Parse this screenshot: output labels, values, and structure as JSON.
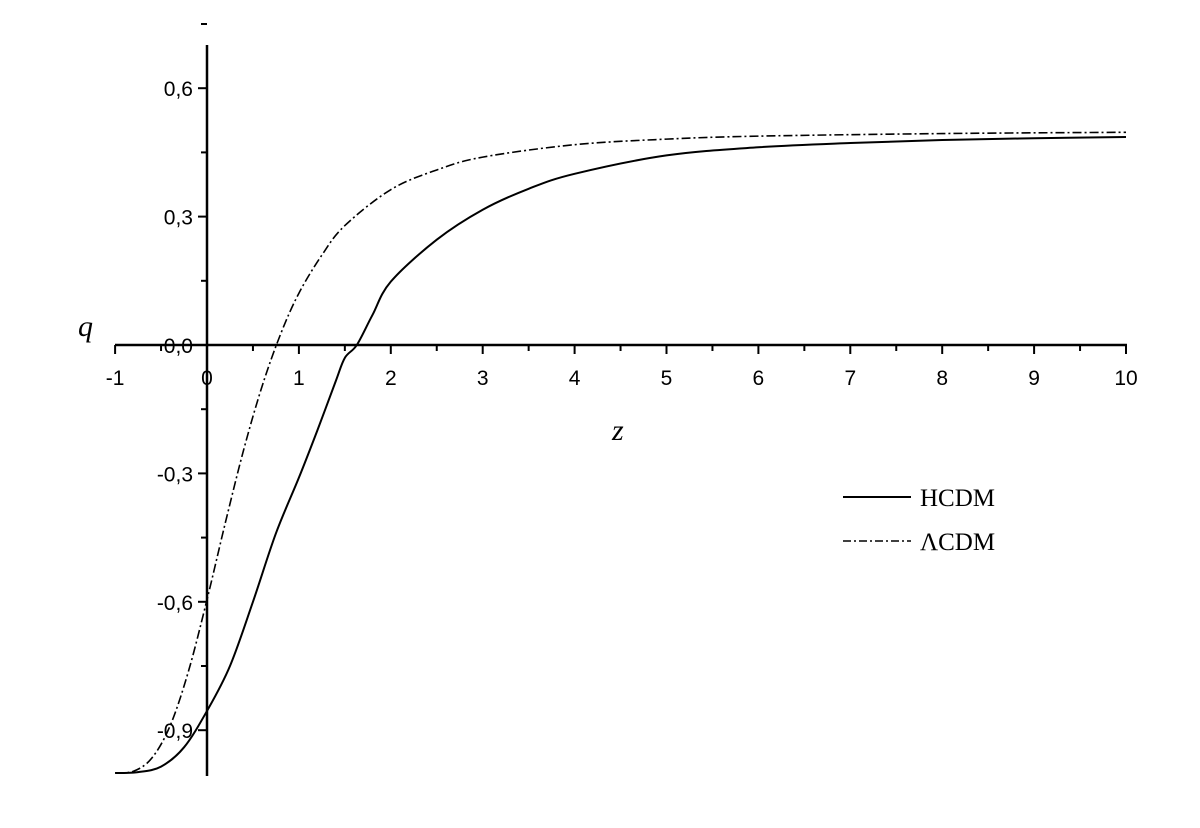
{
  "chart_data": {
    "type": "line",
    "title": "",
    "xlabel": "z",
    "ylabel": "q",
    "xlim": [
      -1,
      10
    ],
    "ylim": [
      -1.0,
      0.7
    ],
    "x_ticks": [
      -1,
      0,
      1,
      2,
      3,
      4,
      5,
      6,
      7,
      8,
      9,
      10
    ],
    "x_tick_labels": [
      "-1",
      "0",
      "1",
      "2",
      "3",
      "4",
      "5",
      "6",
      "7",
      "8",
      "9",
      "10"
    ],
    "y_ticks": [
      -0.9,
      -0.6,
      -0.3,
      0.0,
      0.3,
      0.6
    ],
    "y_tick_labels": [
      "-0,9",
      "-0,6",
      "-0,3",
      "0,0",
      "0,3",
      "0,6"
    ],
    "grid": false,
    "legend_position": "right-middle",
    "series": [
      {
        "name": "HCDM",
        "style": "solid",
        "color": "#000000",
        "x": [
          -1,
          -0.75,
          -0.5,
          -0.25,
          0,
          0.25,
          0.5,
          0.75,
          1.0,
          1.2,
          1.4,
          1.5,
          1.63,
          1.8,
          2.0,
          2.5,
          3.0,
          3.5,
          4.0,
          5.0,
          6.0,
          7.0,
          8.0,
          9.0,
          10.0
        ],
        "y": [
          -1.0,
          -0.998,
          -0.985,
          -0.94,
          -0.855,
          -0.75,
          -0.6,
          -0.44,
          -0.31,
          -0.2,
          -0.085,
          -0.03,
          0.0,
          0.07,
          0.148,
          0.246,
          0.316,
          0.365,
          0.4,
          0.443,
          0.462,
          0.472,
          0.479,
          0.483,
          0.486
        ]
      },
      {
        "name": "ΛCDM",
        "style": "dash-dot",
        "color": "#000000",
        "x": [
          -1,
          -0.8,
          -0.6,
          -0.4,
          -0.2,
          0,
          0.2,
          0.4,
          0.6,
          0.8,
          1.0,
          1.25,
          1.5,
          2.0,
          2.5,
          3.0,
          4.0,
          5.0,
          6.0,
          8.0,
          10.0
        ],
        "y": [
          -1.0,
          -0.996,
          -0.965,
          -0.889,
          -0.761,
          -0.595,
          -0.415,
          -0.244,
          -0.096,
          0.025,
          0.121,
          0.21,
          0.279,
          0.363,
          0.409,
          0.439,
          0.468,
          0.481,
          0.488,
          0.494,
          0.497
        ]
      }
    ]
  }
}
